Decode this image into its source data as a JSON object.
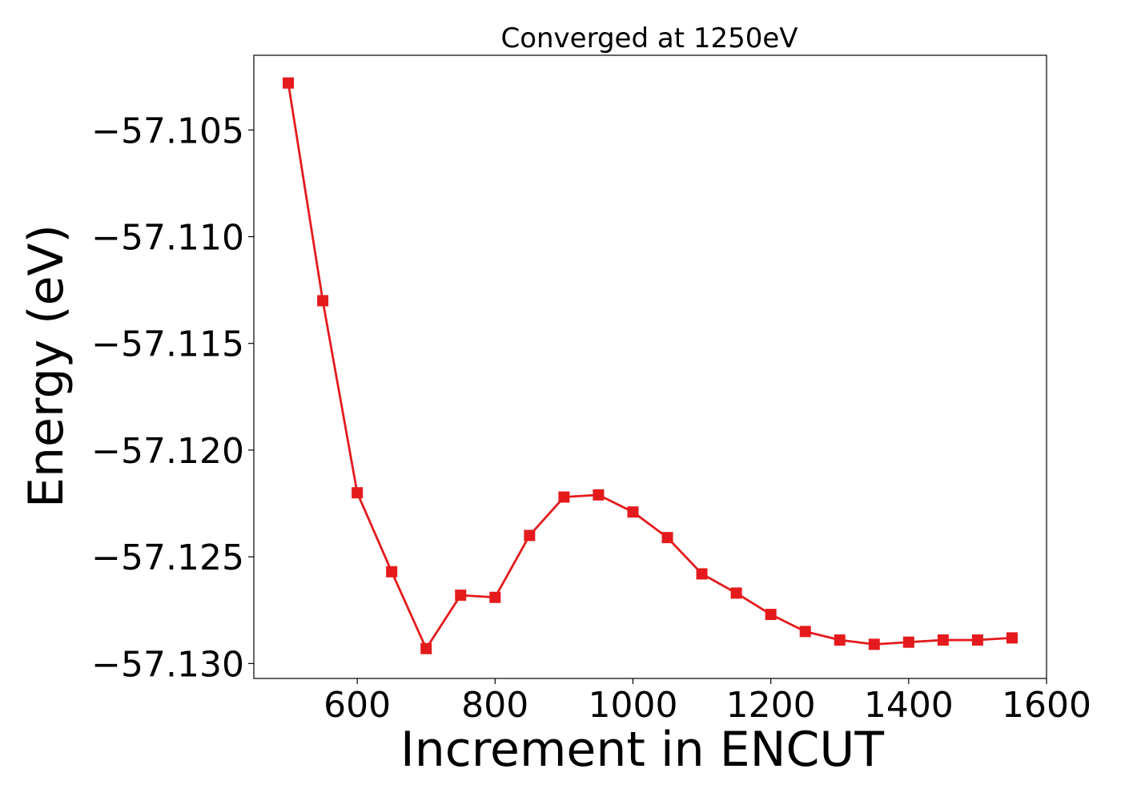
{
  "chart_data": {
    "type": "line",
    "title": "Converged at 1250eV",
    "xlabel": "Increment in ENCUT",
    "ylabel": "Energy (eV)",
    "xlim": [
      450,
      1600
    ],
    "ylim": [
      -57.1307,
      -57.1015
    ],
    "xticks": [
      600,
      800,
      1000,
      1200,
      1400,
      1600
    ],
    "xtick_labels": [
      "600",
      "800",
      "1000",
      "1200",
      "1400",
      "1600"
    ],
    "yticks": [
      -57.105,
      -57.11,
      -57.115,
      -57.12,
      -57.125,
      -57.13
    ],
    "ytick_labels": [
      "−57.105",
      "−57.110",
      "−57.115",
      "−57.120",
      "−57.125",
      "−57.130"
    ],
    "grid": false,
    "marker": "square",
    "series": [
      {
        "color": "#e41a1c",
        "x": [
          500,
          550,
          600,
          650,
          700,
          750,
          800,
          850,
          900,
          950,
          1000,
          1050,
          1100,
          1150,
          1200,
          1250,
          1300,
          1350,
          1400,
          1450,
          1500,
          1550
        ],
        "y": [
          -57.1028,
          -57.113,
          -57.122,
          -57.1257,
          -57.1293,
          -57.1268,
          -57.1269,
          -57.124,
          -57.1222,
          -57.1221,
          -57.1229,
          -57.1241,
          -57.1258,
          -57.1267,
          -57.1277,
          -57.1285,
          -57.1289,
          -57.1291,
          -57.129,
          -57.1289,
          -57.1289,
          -57.1288
        ]
      }
    ]
  }
}
